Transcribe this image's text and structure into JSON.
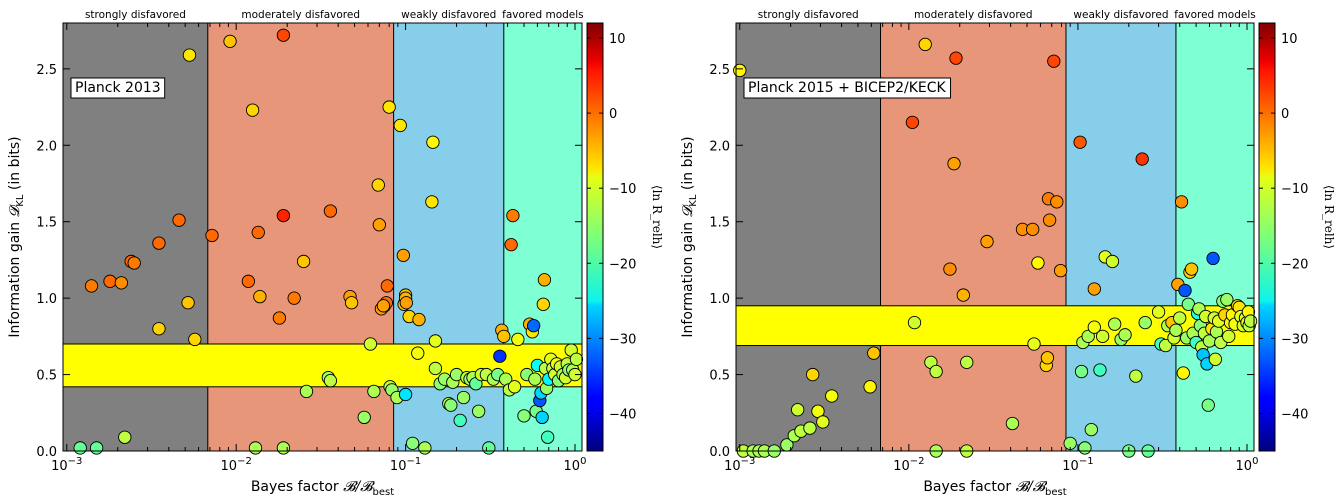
{
  "chart_data": [
    {
      "type": "scatter",
      "annotation": "Planck 2013",
      "xlabel_main": "Bayes factor ",
      "xlabel_math": "𝓑/𝓑",
      "xlabel_sub": "best",
      "ylabel_main": "Information gain ",
      "ylabel_math": "𝓓",
      "ylabel_sub": "KL",
      "ylabel_tail": " (in bits)",
      "xscale": "log",
      "xlim": [
        0.00095,
        1.1
      ],
      "ylim": [
        0,
        2.8
      ],
      "xticks": [
        {
          "v": 0.001,
          "base": "10",
          "exp": "−3"
        },
        {
          "v": 0.01,
          "base": "10",
          "exp": "−2"
        },
        {
          "v": 0.1,
          "base": "10",
          "exp": "−1"
        },
        {
          "v": 1,
          "base": "10",
          "exp": "0"
        }
      ],
      "yticks": [
        "0.0",
        "0.5",
        "1.0",
        "1.5",
        "2.0",
        "2.5"
      ],
      "regions": [
        {
          "label": "strongly disfavored",
          "x0": 0.00095,
          "x1": 0.0068,
          "color": "#808080"
        },
        {
          "label": "moderately disfavored",
          "x0": 0.0068,
          "x1": 0.085,
          "color": "#e8967a"
        },
        {
          "label": "weakly disfavored",
          "x0": 0.085,
          "x1": 0.38,
          "color": "#87ceeb"
        },
        {
          "label": "favored models",
          "x0": 0.38,
          "x1": 1.1,
          "color": "#7fffd4"
        }
      ],
      "band": {
        "y0": 0.42,
        "y1": 0.7,
        "color": "#ffff00"
      },
      "colorbar": {
        "label": "⟨ln R_relh⟩",
        "range": [
          -45,
          12
        ],
        "ticks": [
          "10",
          "0",
          "−10",
          "−20",
          "−30",
          "−40"
        ],
        "tick_values": [
          10,
          0,
          -10,
          -20,
          -30,
          -40
        ]
      },
      "points": [
        [
          0.0012,
          0.02,
          -18
        ],
        [
          0.0015,
          0.02,
          -18
        ],
        [
          0.0022,
          0.09,
          -13
        ],
        [
          0.0014,
          1.08,
          -2
        ],
        [
          0.0018,
          1.11,
          -1
        ],
        [
          0.0021,
          1.1,
          -3
        ],
        [
          0.0024,
          1.24,
          -1
        ],
        [
          0.0025,
          1.23,
          -2
        ],
        [
          0.0035,
          1.36,
          -1
        ],
        [
          0.0046,
          1.51,
          -1
        ],
        [
          0.0052,
          0.97,
          -6
        ],
        [
          0.0035,
          0.8,
          -7
        ],
        [
          0.0057,
          0.73,
          -7
        ],
        [
          0.0053,
          2.59,
          -8
        ],
        [
          0.0072,
          1.41,
          -1
        ],
        [
          0.0092,
          2.68,
          -6
        ],
        [
          0.0125,
          2.23,
          -7
        ],
        [
          0.0135,
          1.43,
          -1
        ],
        [
          0.0118,
          1.11,
          -1
        ],
        [
          0.0138,
          1.01,
          -5
        ],
        [
          0.018,
          0.87,
          -2
        ],
        [
          0.022,
          1.0,
          -2
        ],
        [
          0.019,
          2.72,
          1
        ],
        [
          0.019,
          1.54,
          3
        ],
        [
          0.025,
          1.24,
          -6
        ],
        [
          0.026,
          0.39,
          -14
        ],
        [
          0.013,
          0.02,
          -14
        ],
        [
          0.019,
          0.02,
          -14
        ],
        [
          0.036,
          1.57,
          -1
        ],
        [
          0.035,
          0.48,
          -15
        ],
        [
          0.036,
          0.46,
          -13
        ],
        [
          0.047,
          1.01,
          -4
        ],
        [
          0.048,
          0.97,
          -6
        ],
        [
          0.062,
          0.7,
          -12
        ],
        [
          0.065,
          0.39,
          -14
        ],
        [
          0.069,
          1.74,
          -7
        ],
        [
          0.07,
          1.48,
          -4
        ],
        [
          0.072,
          0.93,
          -4
        ],
        [
          0.075,
          0.95,
          -2
        ],
        [
          0.077,
          0.97,
          -1
        ],
        [
          0.078,
          1.08,
          -1
        ],
        [
          0.08,
          2.25,
          -8
        ],
        [
          0.081,
          0.42,
          -13
        ],
        [
          0.083,
          0.4,
          -15
        ],
        [
          0.074,
          0.95,
          -4
        ],
        [
          0.089,
          0.35,
          -14
        ],
        [
          0.057,
          0.22,
          -15
        ],
        [
          0.093,
          2.13,
          -8
        ],
        [
          0.097,
          1.28,
          -4
        ],
        [
          0.098,
          0.96,
          -6
        ],
        [
          0.1,
          1.02,
          -6
        ],
        [
          0.1,
          1.0,
          -5
        ],
        [
          0.101,
          0.97,
          -4
        ],
        [
          0.105,
          0.88,
          -7
        ],
        [
          0.1,
          0.37,
          -25
        ],
        [
          0.11,
          0.05,
          -16
        ],
        [
          0.12,
          0.86,
          -5
        ],
        [
          0.13,
          0.02,
          -14
        ],
        [
          0.118,
          0.64,
          -10
        ],
        [
          0.145,
          2.02,
          -9
        ],
        [
          0.143,
          1.63,
          -8
        ],
        [
          0.15,
          0.72,
          -11
        ],
        [
          0.15,
          0.54,
          -13
        ],
        [
          0.16,
          0.44,
          -16
        ],
        [
          0.17,
          0.47,
          -15
        ],
        [
          0.18,
          0.31,
          -13
        ],
        [
          0.185,
          0.3,
          -16
        ],
        [
          0.19,
          0.45,
          -14
        ],
        [
          0.2,
          0.5,
          -15
        ],
        [
          0.21,
          0.2,
          -20
        ],
        [
          0.22,
          0.35,
          -15
        ],
        [
          0.23,
          0.48,
          -13
        ],
        [
          0.24,
          0.47,
          -15
        ],
        [
          0.25,
          0.48,
          -14
        ],
        [
          0.26,
          0.44,
          -18
        ],
        [
          0.27,
          0.26,
          -15
        ],
        [
          0.28,
          0.5,
          -12
        ],
        [
          0.3,
          0.5,
          -13
        ],
        [
          0.31,
          0.02,
          -18
        ],
        [
          0.33,
          0.47,
          -14
        ],
        [
          0.35,
          0.5,
          -17
        ],
        [
          0.36,
          0.62,
          -35
        ],
        [
          0.37,
          0.79,
          -5
        ],
        [
          0.38,
          0.75,
          -6
        ],
        [
          0.39,
          0.47,
          -14
        ],
        [
          0.42,
          1.35,
          -1
        ],
        [
          0.43,
          1.54,
          -2
        ],
        [
          0.41,
          0.4,
          -13
        ],
        [
          0.44,
          0.42,
          -11
        ],
        [
          0.46,
          0.73,
          -10
        ],
        [
          0.5,
          0.23,
          -16
        ],
        [
          0.52,
          0.5,
          -16
        ],
        [
          0.54,
          0.83,
          -5
        ],
        [
          0.56,
          0.78,
          -8
        ],
        [
          0.57,
          0.82,
          -32
        ],
        [
          0.58,
          0.47,
          -14
        ],
        [
          0.59,
          0.26,
          -17
        ],
        [
          0.6,
          0.56,
          -23
        ],
        [
          0.62,
          0.33,
          -33
        ],
        [
          0.63,
          0.38,
          -26
        ],
        [
          0.64,
          0.22,
          -26
        ],
        [
          0.65,
          0.96,
          -7
        ],
        [
          0.66,
          1.12,
          -5
        ],
        [
          0.67,
          0.54,
          -13
        ],
        [
          0.68,
          0.41,
          -15
        ],
        [
          0.69,
          0.09,
          -20
        ],
        [
          0.7,
          0.47,
          -24
        ],
        [
          0.72,
          0.6,
          -11
        ],
        [
          0.74,
          0.54,
          -13
        ],
        [
          0.76,
          0.5,
          -12
        ],
        [
          0.78,
          0.57,
          -10
        ],
        [
          0.8,
          0.46,
          -16
        ],
        [
          0.82,
          0.55,
          -12
        ],
        [
          0.85,
          0.5,
          -14
        ],
        [
          0.88,
          0.48,
          -12
        ],
        [
          0.9,
          0.57,
          -13
        ],
        [
          0.92,
          0.53,
          -16
        ],
        [
          0.95,
          0.66,
          -12
        ],
        [
          0.97,
          0.53,
          -14
        ],
        [
          1.0,
          0.5,
          -12
        ],
        [
          1.02,
          0.6,
          -13
        ]
      ]
    },
    {
      "type": "scatter",
      "annotation": "Planck 2015 + BICEP2/KECK",
      "xlabel_main": "Bayes factor ",
      "xlabel_math": "𝓑/𝓑",
      "xlabel_sub": "best",
      "ylabel_main": "Information gain ",
      "ylabel_math": "𝓓",
      "ylabel_sub": "KL",
      "ylabel_tail": " (in bits)",
      "xscale": "log",
      "xlim": [
        0.00095,
        1.1
      ],
      "ylim": [
        0,
        2.8
      ],
      "xticks": [
        {
          "v": 0.001,
          "base": "10",
          "exp": "−3"
        },
        {
          "v": 0.01,
          "base": "10",
          "exp": "−2"
        },
        {
          "v": 0.1,
          "base": "10",
          "exp": "−1"
        },
        {
          "v": 1,
          "base": "10",
          "exp": "0"
        }
      ],
      "yticks": [
        "0.0",
        "0.5",
        "1.0",
        "1.5",
        "2.0",
        "2.5"
      ],
      "regions": [
        {
          "label": "strongly disfavored",
          "x0": 0.00095,
          "x1": 0.0068,
          "color": "#808080"
        },
        {
          "label": "moderately disfavored",
          "x0": 0.0068,
          "x1": 0.085,
          "color": "#e8967a"
        },
        {
          "label": "weakly disfavored",
          "x0": 0.085,
          "x1": 0.38,
          "color": "#87ceeb"
        },
        {
          "label": "favored models",
          "x0": 0.38,
          "x1": 1.1,
          "color": "#7fffd4"
        }
      ],
      "band": {
        "y0": 0.69,
        "y1": 0.95,
        "color": "#ffff00"
      },
      "colorbar": {
        "label": "⟨ln R_relh⟩",
        "range": [
          -45,
          12
        ],
        "ticks": [
          "10",
          "0",
          "−10",
          "−20",
          "−30",
          "−40"
        ],
        "tick_values": [
          10,
          0,
          -10,
          -20,
          -30,
          -40
        ]
      },
      "points": [
        [
          0.001,
          2.49,
          -9
        ],
        [
          0.00105,
          0.0,
          -13
        ],
        [
          0.0012,
          0.0,
          -14
        ],
        [
          0.0013,
          0.0,
          -14
        ],
        [
          0.0014,
          0.0,
          -14
        ],
        [
          0.0016,
          0.0,
          -15
        ],
        [
          0.0019,
          0.04,
          -15
        ],
        [
          0.0021,
          0.1,
          -14
        ],
        [
          0.0022,
          0.27,
          -12
        ],
        [
          0.0023,
          0.13,
          -13
        ],
        [
          0.0026,
          0.15,
          -13
        ],
        [
          0.0027,
          0.5,
          -7
        ],
        [
          0.0029,
          0.26,
          -10
        ],
        [
          0.0031,
          0.19,
          -11
        ],
        [
          0.0035,
          0.36,
          -10
        ],
        [
          0.0059,
          0.42,
          -9
        ],
        [
          0.0062,
          0.64,
          -6
        ],
        [
          0.0105,
          2.15,
          1
        ],
        [
          0.0108,
          0.84,
          -12
        ],
        [
          0.0125,
          2.66,
          -7
        ],
        [
          0.0135,
          0.58,
          -13
        ],
        [
          0.0145,
          0.52,
          -13
        ],
        [
          0.0145,
          0.0,
          -14
        ],
        [
          0.0175,
          1.19,
          -3
        ],
        [
          0.0185,
          1.88,
          -4
        ],
        [
          0.019,
          2.57,
          1
        ],
        [
          0.021,
          1.02,
          -5
        ],
        [
          0.022,
          0.58,
          -13
        ],
        [
          0.022,
          0.0,
          -13
        ],
        [
          0.029,
          1.37,
          -4
        ],
        [
          0.041,
          0.18,
          -14
        ],
        [
          0.047,
          1.45,
          -3
        ],
        [
          0.054,
          1.45,
          -3
        ],
        [
          0.058,
          1.23,
          -9
        ],
        [
          0.055,
          0.7,
          -11
        ],
        [
          0.065,
          0.56,
          -7
        ],
        [
          0.066,
          0.61,
          -6
        ],
        [
          0.067,
          1.65,
          -2
        ],
        [
          0.068,
          1.51,
          -3
        ],
        [
          0.072,
          2.55,
          1
        ],
        [
          0.075,
          1.63,
          -3
        ],
        [
          0.079,
          1.18,
          -4
        ],
        [
          0.09,
          0.05,
          -15
        ],
        [
          0.103,
          2.02,
          0
        ],
        [
          0.105,
          0.52,
          -17
        ],
        [
          0.107,
          0.71,
          -14
        ],
        [
          0.11,
          0.02,
          -16
        ],
        [
          0.115,
          0.75,
          -14
        ],
        [
          0.12,
          0.14,
          -15
        ],
        [
          0.125,
          1.06,
          -4
        ],
        [
          0.125,
          0.81,
          -10
        ],
        [
          0.135,
          0.53,
          -20
        ],
        [
          0.14,
          0.75,
          -12
        ],
        [
          0.145,
          1.27,
          -11
        ],
        [
          0.16,
          1.24,
          -12
        ],
        [
          0.165,
          0.83,
          -14
        ],
        [
          0.18,
          0.73,
          -15
        ],
        [
          0.19,
          0.76,
          -14
        ],
        [
          0.2,
          0.0,
          -17
        ],
        [
          0.22,
          0.49,
          -13
        ],
        [
          0.24,
          1.91,
          2
        ],
        [
          0.25,
          0.84,
          -15
        ],
        [
          0.26,
          0.0,
          -18
        ],
        [
          0.3,
          0.91,
          -11
        ],
        [
          0.31,
          0.7,
          -20
        ],
        [
          0.33,
          0.69,
          -13
        ],
        [
          0.34,
          0.82,
          -14
        ],
        [
          0.36,
          0.84,
          -6
        ],
        [
          0.37,
          0.74,
          -12
        ],
        [
          0.38,
          0.79,
          -14
        ],
        [
          0.39,
          1.09,
          -4
        ],
        [
          0.4,
          0.87,
          -13
        ],
        [
          0.41,
          1.63,
          -3
        ],
        [
          0.42,
          0.51,
          -9
        ],
        [
          0.43,
          1.05,
          -33
        ],
        [
          0.44,
          0.74,
          -15
        ],
        [
          0.45,
          0.96,
          -17
        ],
        [
          0.46,
          1.17,
          -7
        ],
        [
          0.47,
          1.19,
          -6
        ],
        [
          0.48,
          0.77,
          -14
        ],
        [
          0.5,
          0.71,
          -20
        ],
        [
          0.51,
          0.9,
          -22
        ],
        [
          0.52,
          0.93,
          -14
        ],
        [
          0.53,
          0.82,
          -16
        ],
        [
          0.54,
          0.68,
          -13
        ],
        [
          0.55,
          0.63,
          -27
        ],
        [
          0.56,
          0.77,
          -13
        ],
        [
          0.57,
          0.88,
          -12
        ],
        [
          0.58,
          0.57,
          -26
        ],
        [
          0.59,
          0.3,
          -17
        ],
        [
          0.6,
          0.72,
          -14
        ],
        [
          0.62,
          0.8,
          -8
        ],
        [
          0.63,
          1.26,
          -33
        ],
        [
          0.64,
          0.87,
          -12
        ],
        [
          0.65,
          0.6,
          -12
        ],
        [
          0.66,
          0.78,
          -14
        ],
        [
          0.68,
          0.85,
          -11
        ],
        [
          0.7,
          0.71,
          -13
        ],
        [
          0.72,
          0.98,
          -16
        ],
        [
          0.74,
          0.89,
          -7
        ],
        [
          0.76,
          0.99,
          -15
        ],
        [
          0.78,
          0.75,
          -12
        ],
        [
          0.8,
          0.84,
          -10
        ],
        [
          0.82,
          0.89,
          -9
        ],
        [
          0.85,
          0.83,
          -10
        ],
        [
          0.88,
          0.95,
          -8
        ],
        [
          0.9,
          0.94,
          -8
        ],
        [
          0.92,
          0.88,
          -11
        ],
        [
          0.95,
          0.82,
          -12
        ],
        [
          0.98,
          0.87,
          -11
        ],
        [
          1.0,
          0.84,
          -11
        ],
        [
          1.02,
          0.91,
          -9
        ],
        [
          1.03,
          0.82,
          -13
        ],
        [
          1.05,
          0.85,
          -13
        ]
      ]
    }
  ]
}
